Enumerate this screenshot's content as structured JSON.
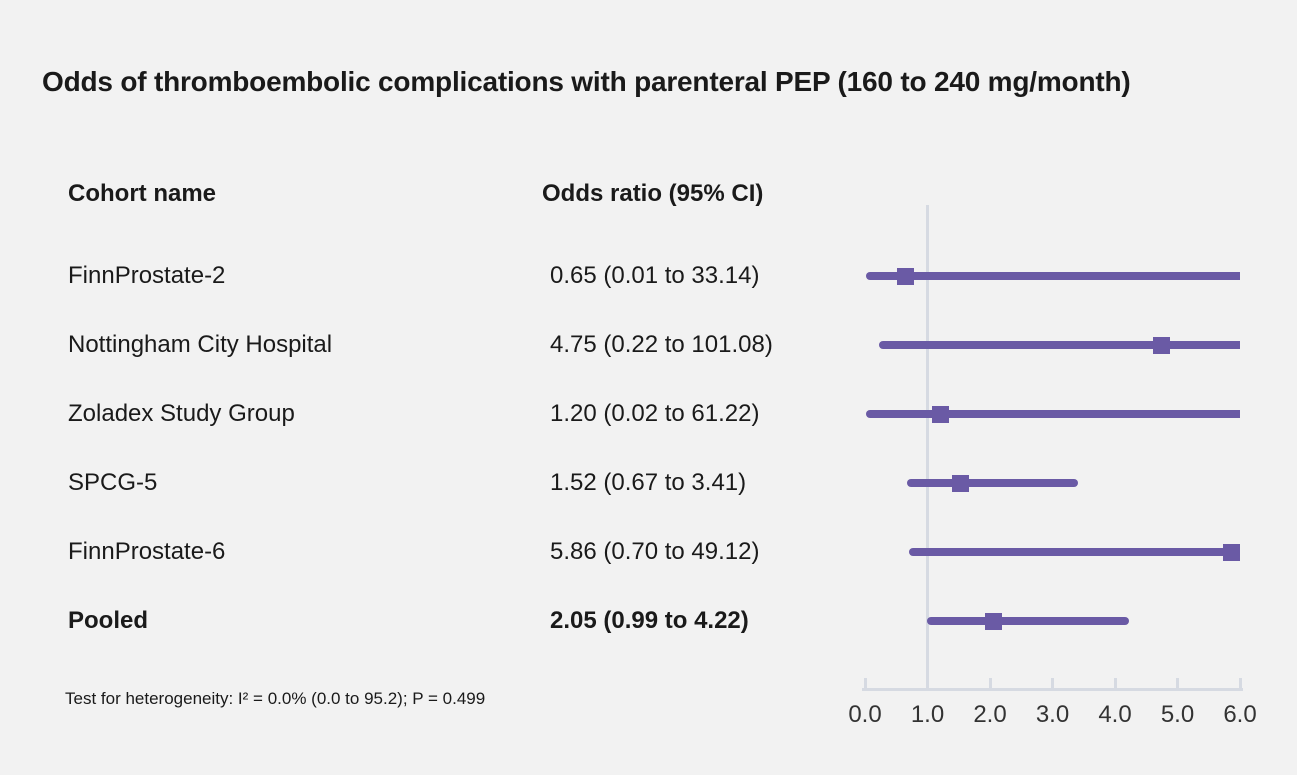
{
  "title": "Odds of thromboembolic complications with parenteral PEP (160 to 240 mg/month)",
  "columns": {
    "cohort": "Cohort name",
    "odds": "Odds ratio (95% CI)"
  },
  "footnote": "Test for heterogeneity: I² = 0.0% (0.0 to 95.2); P = 0.499",
  "colors": {
    "marker": "#6a5aa5",
    "axis": "#d6dae2",
    "text": "#1a1a1a",
    "background": "#f2f2f2"
  },
  "chart_data": {
    "type": "forest",
    "title": "Odds of thromboembolic complications with parenteral PEP (160 to 240 mg/month)",
    "xlim": [
      0,
      6
    ],
    "reference_line": 1.0,
    "axis_tick_values": [
      0,
      1,
      2,
      3,
      4,
      5,
      6
    ],
    "axis_tick_labels": [
      "0.0",
      "1.0",
      "2.0",
      "3.0",
      "4.0",
      "5.0",
      "6.0"
    ],
    "grid": false,
    "rows": [
      {
        "label": "FinnProstate-2",
        "estimate": 0.65,
        "ci_low": 0.01,
        "ci_high": 33.14,
        "display": "0.65 (0.01 to 33.14)",
        "bold": false
      },
      {
        "label": "Nottingham City Hospital",
        "estimate": 4.75,
        "ci_low": 0.22,
        "ci_high": 101.08,
        "display": "4.75 (0.22 to 101.08)",
        "bold": false
      },
      {
        "label": "Zoladex Study Group",
        "estimate": 1.2,
        "ci_low": 0.02,
        "ci_high": 61.22,
        "display": "1.20 (0.02 to 61.22)",
        "bold": false
      },
      {
        "label": "SPCG-5",
        "estimate": 1.52,
        "ci_low": 0.67,
        "ci_high": 3.41,
        "display": "1.52 (0.67 to 3.41)",
        "bold": false
      },
      {
        "label": "FinnProstate-6",
        "estimate": 5.86,
        "ci_low": 0.7,
        "ci_high": 49.12,
        "display": "5.86 (0.70 to 49.12)",
        "bold": false
      },
      {
        "label": "Pooled",
        "estimate": 2.05,
        "ci_low": 0.99,
        "ci_high": 4.22,
        "display": "2.05 (0.99 to 4.22)",
        "bold": true
      }
    ]
  }
}
